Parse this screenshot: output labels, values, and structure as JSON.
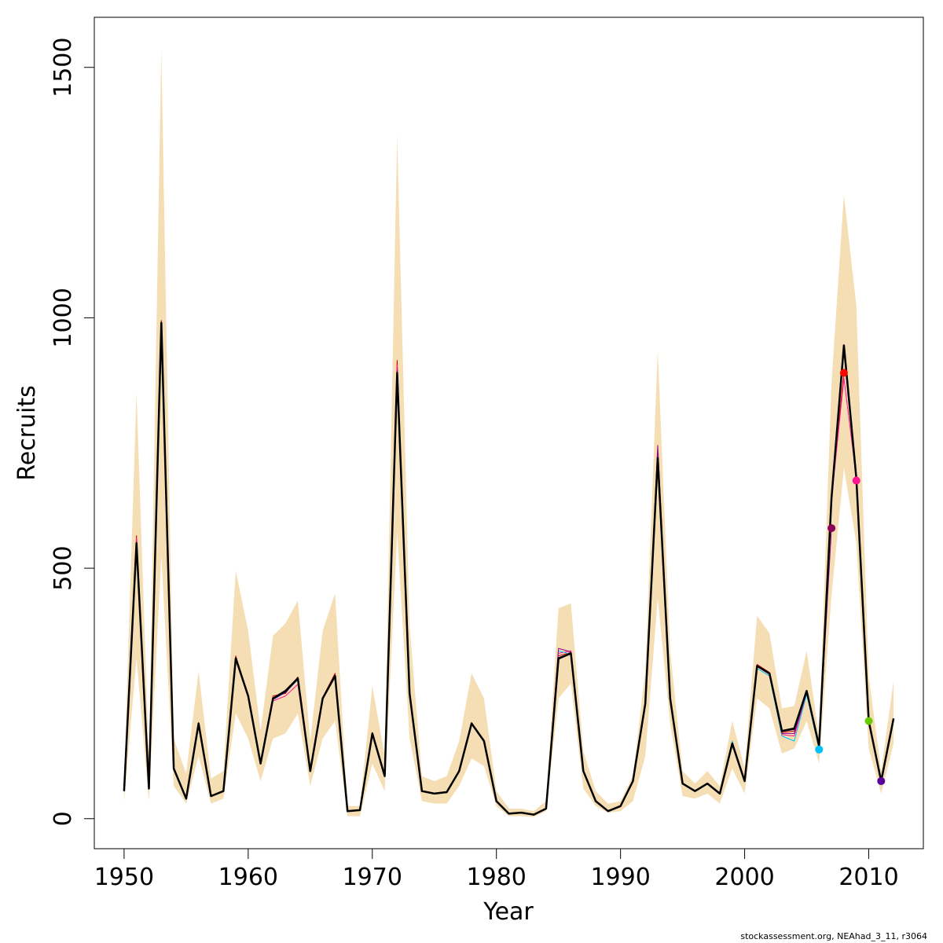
{
  "chart_data": {
    "type": "line",
    "xlabel": "Year",
    "ylabel": "Recruits",
    "xlim": [
      1947.6,
      2014.4
    ],
    "ylim": [
      -60,
      1600
    ],
    "xticks": [
      1950,
      1960,
      1970,
      1980,
      1990,
      2000,
      2010
    ],
    "yticks": [
      0,
      500,
      1000,
      1500
    ],
    "grid": false,
    "band_color": "#f5deb3",
    "band": {
      "x": [
        1950,
        1951,
        1952,
        1953,
        1954,
        1955,
        1956,
        1957,
        1958,
        1959,
        1960,
        1961,
        1962,
        1963,
        1964,
        1965,
        1966,
        1967,
        1968,
        1969,
        1970,
        1971,
        1972,
        1973,
        1974,
        1975,
        1976,
        1977,
        1978,
        1979,
        1980,
        1981,
        1982,
        1983,
        1984,
        1985,
        1986,
        1987,
        1988,
        1989,
        1990,
        1991,
        1992,
        1993,
        1994,
        1995,
        1996,
        1997,
        1998,
        1999,
        2000,
        2001,
        2002,
        2003,
        2004,
        2005,
        2006,
        2007,
        2008,
        2009,
        2010,
        2011,
        2012
      ],
      "upper": [
        80,
        850,
        120,
        1535,
        160,
        90,
        295,
        80,
        95,
        495,
        375,
        175,
        365,
        390,
        435,
        155,
        375,
        450,
        25,
        25,
        265,
        125,
        1365,
        385,
        85,
        75,
        85,
        155,
        290,
        240,
        55,
        20,
        20,
        15,
        35,
        420,
        430,
        135,
        55,
        30,
        35,
        85,
        295,
        935,
        335,
        95,
        70,
        95,
        65,
        195,
        100,
        405,
        370,
        220,
        225,
        335,
        165,
        870,
        1245,
        1025,
        285,
        95,
        275
      ],
      "lower": [
        35,
        320,
        35,
        525,
        65,
        30,
        125,
        30,
        40,
        210,
        160,
        75,
        160,
        170,
        210,
        65,
        160,
        195,
        5,
        5,
        110,
        55,
        570,
        160,
        35,
        30,
        30,
        65,
        120,
        105,
        25,
        5,
        5,
        3,
        15,
        240,
        270,
        60,
        25,
        12,
        15,
        35,
        125,
        440,
        190,
        45,
        40,
        50,
        30,
        100,
        50,
        240,
        220,
        130,
        140,
        195,
        110,
        445,
        700,
        550,
        140,
        50,
        150
      ]
    },
    "series": [
      {
        "color": "#000000",
        "x": [
          1950,
          1951,
          1952,
          1953,
          1954,
          1955,
          1956,
          1957,
          1958,
          1959,
          1960,
          1961,
          1962,
          1963,
          1964,
          1965,
          1966,
          1967,
          1968,
          1969,
          1970,
          1971,
          1972,
          1973,
          1974,
          1975,
          1976,
          1977,
          1978,
          1979,
          1980,
          1981,
          1982,
          1983,
          1984,
          1985,
          1986,
          1987,
          1988,
          1989,
          1990,
          1991,
          1992,
          1993,
          1994,
          1995,
          1996,
          1997,
          1998,
          1999,
          2000,
          2001,
          2002,
          2003,
          2004,
          2005,
          2006,
          2007,
          2008,
          2009,
          2010,
          2011,
          2012
        ],
        "values": [
          55,
          550,
          60,
          990,
          100,
          40,
          190,
          45,
          55,
          320,
          245,
          110,
          240,
          255,
          280,
          95,
          240,
          285,
          15,
          17,
          170,
          85,
          890,
          250,
          55,
          50,
          53,
          95,
          190,
          155,
          35,
          10,
          12,
          8,
          20,
          320,
          330,
          95,
          35,
          15,
          25,
          75,
          230,
          720,
          240,
          70,
          55,
          70,
          50,
          150,
          75,
          305,
          290,
          175,
          180,
          255,
          145,
          640,
          945,
          680,
          195,
          75,
          200
        ]
      },
      {
        "color": "#cc0000",
        "x": [
          1950,
          1951,
          1952,
          1953,
          1954,
          1955,
          1956,
          1957,
          1958,
          1959,
          1960,
          1961,
          1962,
          1963,
          1964,
          1965,
          1966,
          1967,
          1968,
          1969,
          1970,
          1971,
          1972,
          1973,
          1974,
          1975,
          1976,
          1977,
          1978,
          1979,
          1980,
          1981,
          1982,
          1983,
          1984,
          1985,
          1986,
          1987,
          1988,
          1989,
          1990,
          1991,
          1992,
          1993,
          1994,
          1995,
          1996,
          1997,
          1998,
          1999,
          2000,
          2001,
          2002,
          2003,
          2004,
          2005,
          2006,
          2007,
          2008
        ],
        "values": [
          57,
          565,
          62,
          995,
          102,
          41,
          192,
          46,
          56,
          325,
          247,
          112,
          245,
          250,
          283,
          97,
          242,
          290,
          16,
          18,
          172,
          87,
          915,
          252,
          56,
          51,
          54,
          96,
          192,
          157,
          36,
          11,
          13,
          9,
          21,
          325,
          332,
          96,
          36,
          16,
          26,
          76,
          233,
          730,
          242,
          71,
          56,
          71,
          51,
          152,
          76,
          308,
          292,
          172,
          175,
          253,
          147,
          650,
          890
        ]
      },
      {
        "color": "#ff1493",
        "x": [
          1950,
          1951,
          1952,
          1953,
          1954,
          1955,
          1956,
          1957,
          1958,
          1959,
          1960,
          1961,
          1962,
          1963,
          1964,
          1965,
          1966,
          1967,
          1968,
          1969,
          1970,
          1971,
          1972,
          1973,
          1974,
          1975,
          1976,
          1977,
          1978,
          1979,
          1980,
          1981,
          1982,
          1983,
          1984,
          1985,
          1986,
          1987,
          1988,
          1989,
          1990,
          1991,
          1992,
          1993,
          1994,
          1995,
          1996,
          1997,
          1998,
          1999,
          2000,
          2001,
          2002,
          2003,
          2004,
          2005,
          2006,
          2007,
          2008,
          2009
        ],
        "values": [
          56,
          560,
          61,
          985,
          101,
          41,
          191,
          46,
          55,
          322,
          246,
          111,
          235,
          245,
          268,
          96,
          241,
          287,
          15,
          17,
          171,
          86,
          905,
          251,
          55,
          50,
          53,
          95,
          191,
          156,
          35,
          10,
          12,
          8,
          20,
          330,
          335,
          95,
          35,
          15,
          25,
          75,
          231,
          725,
          241,
          70,
          55,
          70,
          50,
          151,
          75,
          304,
          288,
          168,
          165,
          250,
          146,
          635,
          880,
          680
        ]
      },
      {
        "color": "#00bfff",
        "x": [
          1950,
          1951,
          1952,
          1953,
          1954,
          1955,
          1956,
          1957,
          1958,
          1959,
          1960,
          1961,
          1962,
          1963,
          1964,
          1965,
          1966,
          1967,
          1968,
          1969,
          1970,
          1971,
          1972,
          1973,
          1974,
          1975,
          1976,
          1977,
          1978,
          1979,
          1980,
          1981,
          1982,
          1983,
          1984,
          1985,
          1986,
          1987,
          1988,
          1989,
          1990,
          1991,
          1992,
          1993,
          1994,
          1995,
          1996,
          1997,
          1998,
          1999,
          2000,
          2001,
          2002,
          2003,
          2004,
          2005,
          2006
        ],
        "values": [
          54,
          545,
          59,
          980,
          99,
          40,
          189,
          45,
          54,
          318,
          244,
          109,
          238,
          253,
          278,
          94,
          239,
          283,
          15,
          16,
          169,
          84,
          885,
          249,
          54,
          49,
          52,
          94,
          189,
          154,
          34,
          10,
          12,
          8,
          20,
          335,
          328,
          94,
          34,
          15,
          25,
          74,
          229,
          715,
          239,
          69,
          54,
          69,
          50,
          155,
          74,
          300,
          285,
          165,
          155,
          248,
          138
        ]
      },
      {
        "color": "#8b008b",
        "x": [
          1950,
          1951,
          1952,
          1953,
          1954,
          1955,
          1956,
          1957,
          1958,
          1959,
          1960,
          1961,
          1962,
          1963,
          1964,
          1965,
          1966,
          1967,
          1968,
          1969,
          1970,
          1971,
          1972,
          1973,
          1974,
          1975,
          1976,
          1977,
          1978,
          1979,
          1980,
          1981,
          1982,
          1983,
          1984,
          1985,
          1986,
          1987,
          1988,
          1989,
          1990,
          1991,
          1992,
          1993,
          1994,
          1995,
          1996,
          1997,
          1998,
          1999,
          2000,
          2001,
          2002,
          2003,
          2004,
          2005,
          2006,
          2007
        ],
        "values": [
          55,
          552,
          60,
          988,
          100,
          40,
          190,
          45,
          55,
          320,
          245,
          110,
          240,
          254,
          279,
          95,
          240,
          285,
          15,
          17,
          170,
          85,
          895,
          250,
          55,
          50,
          53,
          95,
          190,
          155,
          35,
          10,
          12,
          8,
          20,
          340,
          333,
          95,
          35,
          15,
          25,
          75,
          230,
          745,
          240,
          70,
          55,
          70,
          50,
          150,
          75,
          306,
          289,
          170,
          170,
          254,
          144,
          580
        ]
      },
      {
        "color": "#00008b",
        "x": [
          1950,
          1951,
          1952,
          1953,
          1954,
          1955,
          1956,
          1957,
          1958,
          1959,
          1960,
          1961,
          1962,
          1963,
          1964,
          1965,
          1966,
          1967,
          1968,
          1969,
          1970,
          1971,
          1972,
          1973,
          1974,
          1975,
          1976,
          1977,
          1978,
          1979,
          1980,
          1981,
          1982,
          1983,
          1984,
          1985,
          1986,
          1987,
          1988,
          1989,
          1990,
          1991,
          1992,
          1993,
          1994,
          1995,
          1996,
          1997,
          1998,
          1999,
          2000,
          2001,
          2002,
          2003,
          2004,
          2005,
          2006,
          2007,
          2008,
          2009,
          2010,
          2011
        ],
        "values": [
          55,
          548,
          60,
          985,
          100,
          40,
          190,
          45,
          55,
          320,
          245,
          110,
          238,
          252,
          278,
          95,
          240,
          284,
          15,
          17,
          170,
          85,
          880,
          250,
          55,
          50,
          53,
          95,
          190,
          155,
          35,
          10,
          12,
          8,
          20,
          318,
          329,
          95,
          35,
          15,
          25,
          75,
          230,
          715,
          240,
          70,
          55,
          70,
          50,
          150,
          75,
          304,
          289,
          174,
          178,
          255,
          145,
          630,
          935,
          675,
          195,
          75
        ]
      },
      {
        "color": "#44aa00",
        "x": [
          2006,
          2007,
          2008,
          2009,
          2010
        ],
        "values": [
          145,
          640,
          940,
          680,
          195
        ]
      }
    ],
    "points": [
      {
        "x": 2006,
        "y": 138,
        "color": "#00bfff"
      },
      {
        "x": 2007,
        "y": 580,
        "color": "#8b005a"
      },
      {
        "x": 2008,
        "y": 890,
        "color": "#ff0000"
      },
      {
        "x": 2009,
        "y": 675,
        "color": "#ff1493"
      },
      {
        "x": 2010,
        "y": 195,
        "color": "#66cc00"
      },
      {
        "x": 2011,
        "y": 75,
        "color": "#5a009a"
      }
    ]
  },
  "footer": "stockassessment.org, NEAhad_3_11, r3064"
}
